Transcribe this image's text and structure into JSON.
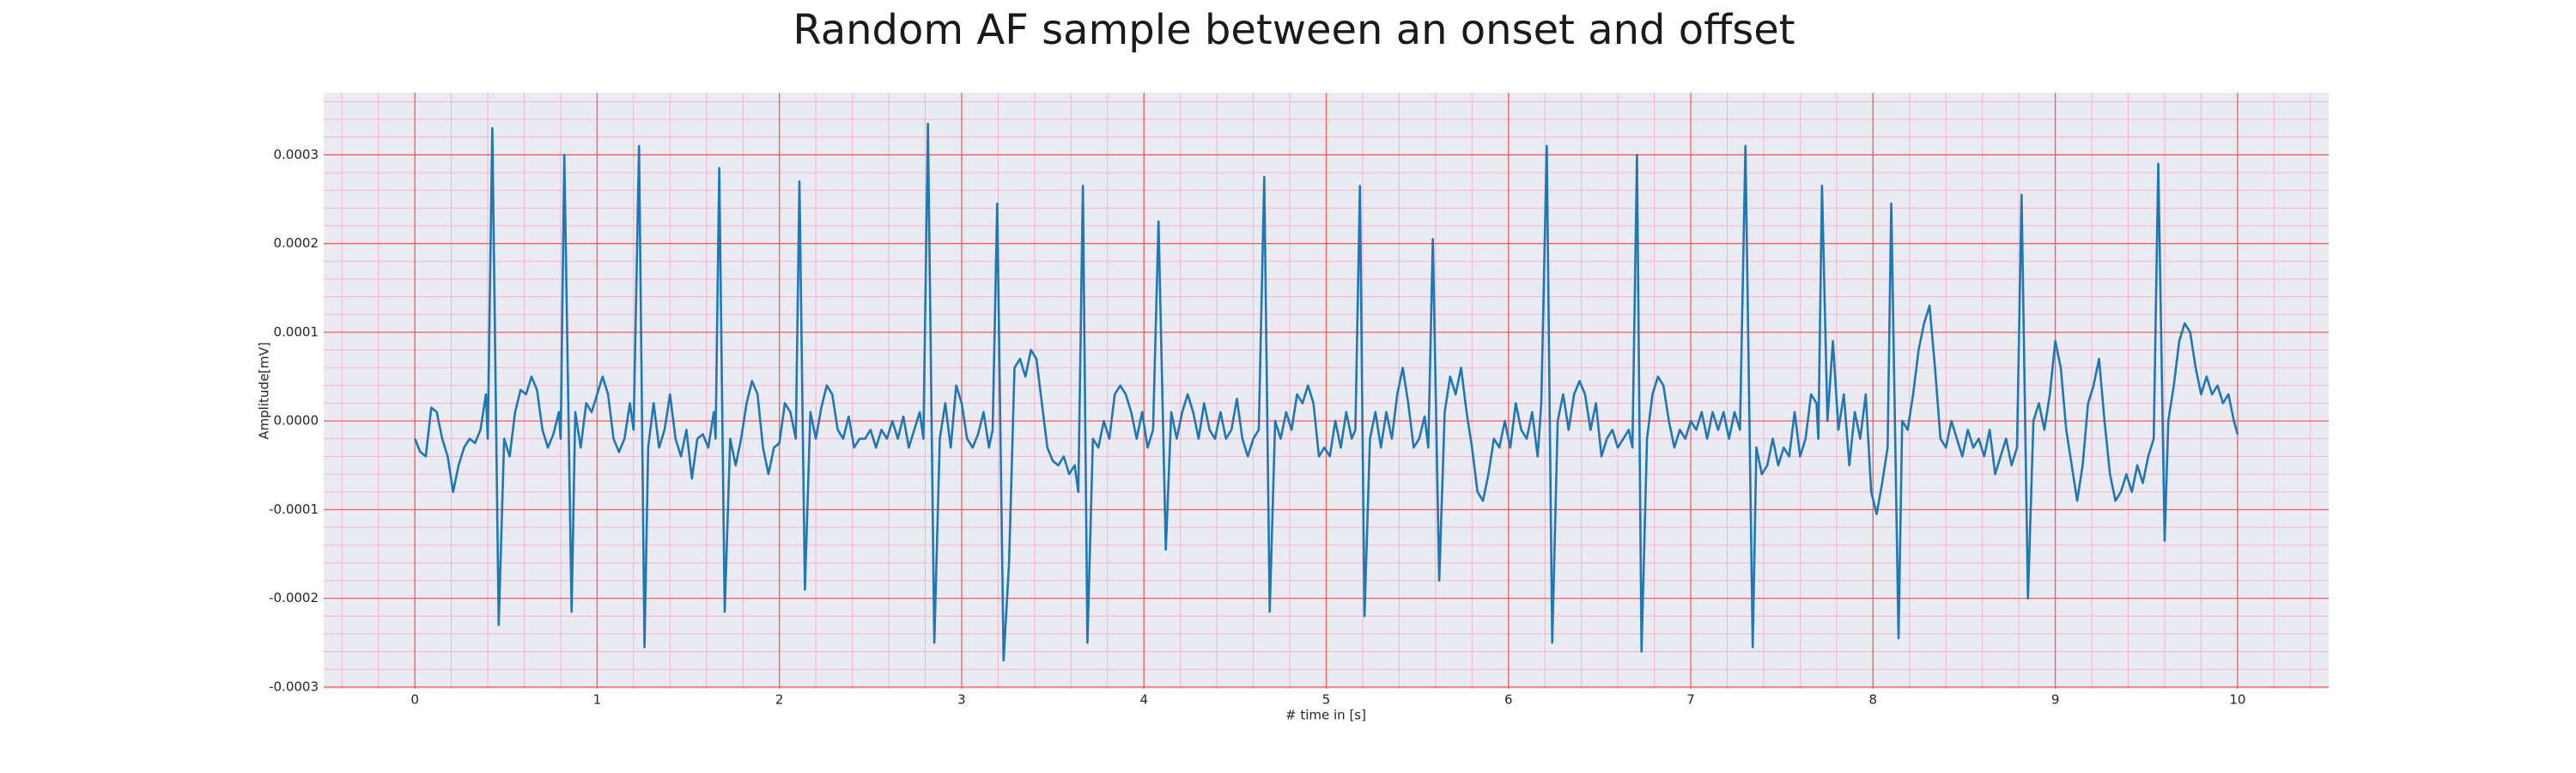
{
  "chart_data": {
    "type": "line",
    "title": "Random AF sample between an onset and offset",
    "xlabel": "# time in [s]",
    "ylabel": "Amplitude[mV]",
    "color": "#1f77b4",
    "grid": true,
    "minor_grid": true,
    "xlim": [
      -0.5,
      10.5
    ],
    "ylim": [
      -0.000302,
      0.00037
    ],
    "xticks": [
      0,
      1,
      2,
      3,
      4,
      5,
      6,
      7,
      8,
      9,
      10
    ],
    "yticks": [
      -0.0003,
      -0.0002,
      -0.0001,
      {
        "value": 0,
        "label": "0.0000"
      },
      0.0001,
      0.0002,
      0.0003
    ],
    "x": [
      0,
      0.03,
      0.06,
      0.09,
      0.12,
      0.15,
      0.18,
      0.21,
      0.24,
      0.27,
      0.3,
      0.33,
      0.36,
      0.39,
      0.4,
      0.425,
      0.46,
      0.49,
      0.52,
      0.55,
      0.58,
      0.61,
      0.64,
      0.67,
      0.7,
      0.73,
      0.76,
      0.79,
      0.8,
      0.82,
      0.86,
      0.88,
      0.91,
      0.94,
      0.97,
      1.0,
      1.03,
      1.06,
      1.09,
      1.12,
      1.15,
      1.18,
      1.2,
      1.23,
      1.26,
      1.28,
      1.31,
      1.34,
      1.37,
      1.4,
      1.43,
      1.46,
      1.49,
      1.52,
      1.55,
      1.58,
      1.61,
      1.64,
      1.65,
      1.67,
      1.7,
      1.73,
      1.76,
      1.79,
      1.82,
      1.85,
      1.88,
      1.91,
      1.94,
      1.97,
      2.0,
      2.03,
      2.06,
      2.09,
      2.11,
      2.14,
      2.17,
      2.2,
      2.23,
      2.26,
      2.29,
      2.32,
      2.35,
      2.38,
      2.41,
      2.44,
      2.47,
      2.5,
      2.53,
      2.56,
      2.59,
      2.62,
      2.65,
      2.68,
      2.71,
      2.74,
      2.77,
      2.79,
      2.815,
      2.85,
      2.88,
      2.91,
      2.94,
      2.97,
      3.0,
      3.03,
      3.06,
      3.09,
      3.12,
      3.15,
      3.17,
      3.195,
      3.23,
      3.26,
      3.29,
      3.32,
      3.35,
      3.38,
      3.41,
      3.44,
      3.47,
      3.5,
      3.53,
      3.56,
      3.59,
      3.62,
      3.64,
      3.665,
      3.69,
      3.72,
      3.75,
      3.78,
      3.81,
      3.84,
      3.87,
      3.9,
      3.93,
      3.96,
      3.99,
      4.02,
      4.05,
      4.08,
      4.12,
      4.15,
      4.18,
      4.21,
      4.24,
      4.27,
      4.3,
      4.33,
      4.36,
      4.39,
      4.42,
      4.45,
      4.48,
      4.51,
      4.54,
      4.57,
      4.6,
      4.63,
      4.66,
      4.69,
      4.72,
      4.75,
      4.78,
      4.81,
      4.84,
      4.87,
      4.9,
      4.93,
      4.96,
      4.99,
      5.02,
      5.05,
      5.08,
      5.11,
      5.14,
      5.16,
      5.185,
      5.21,
      5.24,
      5.27,
      5.3,
      5.33,
      5.36,
      5.39,
      5.42,
      5.45,
      5.48,
      5.51,
      5.54,
      5.56,
      5.585,
      5.62,
      5.65,
      5.68,
      5.71,
      5.74,
      5.77,
      5.8,
      5.83,
      5.86,
      5.89,
      5.92,
      5.95,
      5.98,
      6.01,
      6.04,
      6.07,
      6.1,
      6.13,
      6.16,
      6.18,
      6.21,
      6.24,
      6.27,
      6.3,
      6.33,
      6.36,
      6.39,
      6.42,
      6.45,
      6.48,
      6.51,
      6.54,
      6.57,
      6.6,
      6.63,
      6.66,
      6.68,
      6.705,
      6.73,
      6.76,
      6.79,
      6.82,
      6.85,
      6.88,
      6.91,
      6.94,
      6.97,
      7.0,
      7.03,
      7.06,
      7.09,
      7.12,
      7.15,
      7.18,
      7.21,
      7.24,
      7.27,
      7.3,
      7.34,
      7.36,
      7.39,
      7.42,
      7.45,
      7.48,
      7.51,
      7.54,
      7.57,
      7.6,
      7.63,
      7.66,
      7.69,
      7.7,
      7.72,
      7.75,
      7.78,
      7.81,
      7.84,
      7.87,
      7.9,
      7.93,
      7.96,
      7.99,
      8.02,
      8.05,
      8.08,
      8.1,
      8.14,
      8.16,
      8.19,
      8.22,
      8.25,
      8.28,
      8.31,
      8.34,
      8.37,
      8.4,
      8.43,
      8.46,
      8.49,
      8.52,
      8.55,
      8.58,
      8.61,
      8.64,
      8.67,
      8.7,
      8.73,
      8.76,
      8.79,
      8.815,
      8.85,
      8.88,
      8.91,
      8.94,
      8.97,
      9.0,
      9.03,
      9.06,
      9.09,
      9.12,
      9.15,
      9.18,
      9.21,
      9.24,
      9.27,
      9.3,
      9.33,
      9.36,
      9.39,
      9.42,
      9.45,
      9.48,
      9.51,
      9.54,
      9.565,
      9.6,
      9.62,
      9.65,
      9.68,
      9.71,
      9.74,
      9.77,
      9.8,
      9.83,
      9.86,
      9.89,
      9.92,
      9.95,
      9.98,
      10.0
    ],
    "values": [
      -2e-05,
      -3.5e-05,
      -4e-05,
      1.5e-05,
      1e-05,
      -2e-05,
      -4e-05,
      -8e-05,
      -5e-05,
      -3e-05,
      -2e-05,
      -2.5e-05,
      -1e-05,
      3e-05,
      -2e-05,
      0.00033,
      -0.00023,
      -2e-05,
      -4e-05,
      1e-05,
      3.5e-05,
      3e-05,
      5e-05,
      3.5e-05,
      -1e-05,
      -3e-05,
      -1.5e-05,
      1e-05,
      -2e-05,
      0.0003,
      -0.000215,
      1e-05,
      -3e-05,
      2e-05,
      1e-05,
      3e-05,
      5e-05,
      3e-05,
      -2e-05,
      -3.5e-05,
      -2e-05,
      2e-05,
      -1e-05,
      0.00031,
      -0.000255,
      -3e-05,
      2e-05,
      -3e-05,
      -1e-05,
      3e-05,
      -2e-05,
      -4e-05,
      -1e-05,
      -6.5e-05,
      -2e-05,
      -1.5e-05,
      -3e-05,
      1e-05,
      -2e-05,
      0.000285,
      -0.000215,
      -2e-05,
      -5e-05,
      -2e-05,
      2e-05,
      4.5e-05,
      3e-05,
      -3e-05,
      -6e-05,
      -3e-05,
      -2.5e-05,
      2e-05,
      1e-05,
      -2e-05,
      0.00027,
      -0.00019,
      1e-05,
      -2e-05,
      1.5e-05,
      4e-05,
      3e-05,
      -1e-05,
      -2e-05,
      5e-06,
      -3e-05,
      -2e-05,
      -2e-05,
      -1e-05,
      -3e-05,
      -1e-05,
      -2e-05,
      0,
      -2e-05,
      5e-06,
      -3e-05,
      -1e-05,
      1e-05,
      -2e-05,
      0.000335,
      -0.00025,
      -2e-05,
      2e-05,
      -3e-05,
      4e-05,
      2e-05,
      -2e-05,
      -3e-05,
      -1.5e-05,
      1e-05,
      -3e-05,
      -1e-05,
      0.000245,
      -0.00027,
      -0.00016,
      6e-05,
      7e-05,
      5e-05,
      8e-05,
      7e-05,
      2e-05,
      -3e-05,
      -4.5e-05,
      -5e-05,
      -4e-05,
      -6e-05,
      -5e-05,
      -8e-05,
      0.000265,
      -0.00025,
      -2e-05,
      -3e-05,
      0,
      -2e-05,
      3e-05,
      4e-05,
      3e-05,
      1e-05,
      -2e-05,
      1e-05,
      -3e-05,
      -1e-05,
      0.000225,
      -0.000145,
      1e-05,
      -2e-05,
      1e-05,
      3e-05,
      1e-05,
      -2e-05,
      2e-05,
      -1e-05,
      -2e-05,
      1e-05,
      -2e-05,
      -1e-05,
      2.5e-05,
      -2e-05,
      -4e-05,
      -2e-05,
      -1e-05,
      0.000275,
      -0.000215,
      0,
      -2e-05,
      1e-05,
      -1e-05,
      3e-05,
      2e-05,
      4e-05,
      2e-05,
      -4e-05,
      -3e-05,
      -4e-05,
      0,
      -3e-05,
      1e-05,
      -2e-05,
      -1e-05,
      0.000265,
      -0.00022,
      -2e-05,
      1e-05,
      -3e-05,
      1e-05,
      -2e-05,
      3e-05,
      6e-05,
      2e-05,
      -3e-05,
      -2e-05,
      5e-06,
      -3e-05,
      0.000205,
      -0.00018,
      1e-05,
      5e-05,
      3e-05,
      6e-05,
      1e-05,
      -3e-05,
      -8e-05,
      -9e-05,
      -6e-05,
      -2e-05,
      -3e-05,
      0,
      -3e-05,
      2e-05,
      -1e-05,
      -2e-05,
      1e-05,
      -4e-05,
      2e-05,
      0.00031,
      -0.00025,
      0,
      3e-05,
      -1e-05,
      3e-05,
      4.5e-05,
      3e-05,
      -1e-05,
      2e-05,
      -4e-05,
      -2e-05,
      -1e-05,
      -3e-05,
      -2e-05,
      -1e-05,
      -3e-05,
      0.0003,
      -0.00026,
      -2e-05,
      3e-05,
      5e-05,
      4e-05,
      0,
      -3e-05,
      -1e-05,
      -2e-05,
      0,
      -1e-05,
      1e-05,
      -2e-05,
      1e-05,
      -1e-05,
      1e-05,
      -2e-05,
      1e-05,
      -1e-05,
      0.00031,
      -0.000255,
      -3e-05,
      -6e-05,
      -5e-05,
      -2e-05,
      -5e-05,
      -3e-05,
      -4e-05,
      1e-05,
      -4e-05,
      -2e-05,
      3e-05,
      2e-05,
      -2e-05,
      0.000265,
      0,
      9e-05,
      -1e-05,
      3e-05,
      -5e-05,
      1e-05,
      -2e-05,
      3e-05,
      -8e-05,
      -0.000105,
      -7e-05,
      -3e-05,
      0.000245,
      -0.000245,
      0,
      -1e-05,
      3e-05,
      8e-05,
      0.00011,
      0.00013,
      6e-05,
      -2e-05,
      -3e-05,
      0,
      -2e-05,
      -4e-05,
      -1e-05,
      -3e-05,
      -2e-05,
      -4e-05,
      -1e-05,
      -6e-05,
      -4e-05,
      -2e-05,
      -5e-05,
      -3e-05,
      0.000255,
      -0.0002,
      0,
      2e-05,
      -1e-05,
      3e-05,
      9e-05,
      6e-05,
      -1e-05,
      -5e-05,
      -9e-05,
      -5e-05,
      2e-05,
      4e-05,
      7e-05,
      0,
      -6e-05,
      -9e-05,
      -8e-05,
      -6e-05,
      -8e-05,
      -5e-05,
      -7e-05,
      -4e-05,
      -2e-05,
      0.00029,
      -0.000135,
      0,
      4e-05,
      9e-05,
      0.00011,
      0.0001,
      6e-05,
      3e-05,
      5e-05,
      3e-05,
      4e-05,
      2e-05,
      3e-05,
      0,
      -1.5e-05
    ]
  }
}
